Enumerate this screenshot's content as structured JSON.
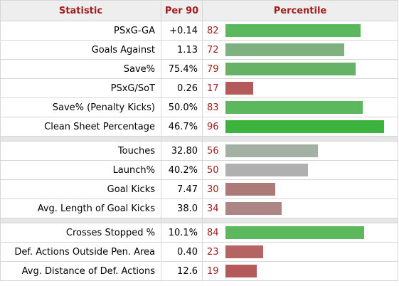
{
  "headers": {
    "statistic": "Statistic",
    "per90": "Per 90",
    "percentile": "Percentile"
  },
  "groups": [
    {
      "rows": [
        {
          "stat": "PSxG-GA",
          "per90": "+0.14",
          "percentile": "82",
          "pct_value": 82,
          "color": "#5cb85c"
        },
        {
          "stat": "Goals Against",
          "per90": "1.13",
          "percentile": "72",
          "pct_value": 72,
          "color": "#7fb07f"
        },
        {
          "stat": "Save%",
          "per90": "75.4%",
          "percentile": "79",
          "pct_value": 79,
          "color": "#66b266"
        },
        {
          "stat": "PSxG/SoT",
          "per90": "0.26",
          "percentile": "17",
          "pct_value": 17,
          "color": "#b55a5a"
        },
        {
          "stat": "Save% (Penalty Kicks)",
          "per90": "50.0%",
          "percentile": "83",
          "pct_value": 83,
          "color": "#5cb85c"
        },
        {
          "stat": "Clean Sheet Percentage",
          "per90": "46.7%",
          "percentile": "96",
          "pct_value": 96,
          "color": "#3cb33c"
        }
      ]
    },
    {
      "rows": [
        {
          "stat": "Touches",
          "per90": "32.80",
          "percentile": "56",
          "pct_value": 56,
          "color": "#a3b0a3"
        },
        {
          "stat": "Launch%",
          "per90": "40.2%",
          "percentile": "50",
          "pct_value": 50,
          "color": "#b0b0b0"
        },
        {
          "stat": "Goal Kicks",
          "per90": "7.47",
          "percentile": "30",
          "pct_value": 30,
          "color": "#ad7a7a"
        },
        {
          "stat": "Avg. Length of Goal Kicks",
          "per90": "38.0",
          "percentile": "34",
          "pct_value": 34,
          "color": "#ad8585"
        }
      ]
    },
    {
      "rows": [
        {
          "stat": "Crosses Stopped %",
          "per90": "10.1%",
          "percentile": "84",
          "pct_value": 84,
          "color": "#5cb85c"
        },
        {
          "stat": "Def. Actions Outside Pen. Area",
          "per90": "0.40",
          "percentile": "23",
          "pct_value": 23,
          "color": "#b56464"
        },
        {
          "stat": "Avg. Distance of Def. Actions",
          "per90": "12.6",
          "percentile": "19",
          "pct_value": 19,
          "color": "#b55a5a"
        }
      ]
    }
  ]
}
